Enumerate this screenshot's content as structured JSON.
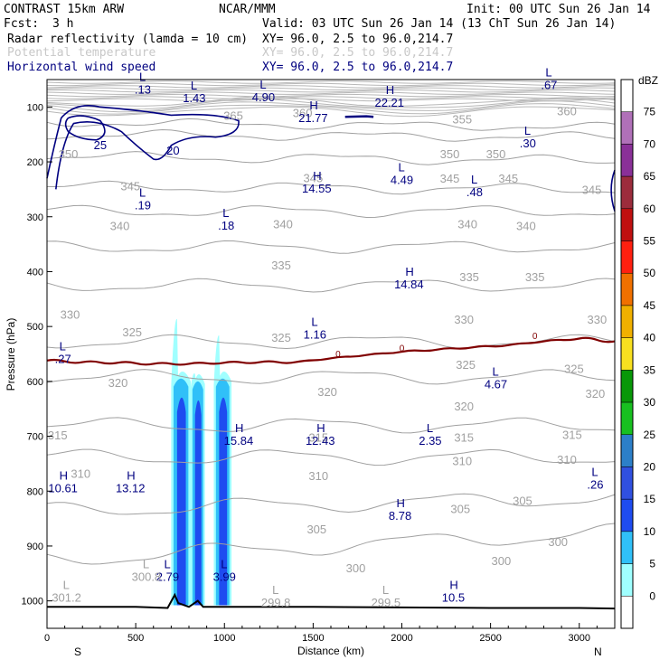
{
  "header": {
    "model": "CONTRAST 15km ARW",
    "org": "NCAR/MMM",
    "init": "Init: 00 UTC Sun 26 Jan 14",
    "fcst_label": "Fcst:",
    "fcst_value": "3 h",
    "valid": "Valid: 03 UTC Sun 26 Jan 14 (13 ChT Sun 26 Jan 14)",
    "fields": [
      {
        "name": "Radar reflectivity (lamda = 10 cm)",
        "xy": "XY=  96.0,  2.5 to  96.0,214.7",
        "color": "#000000"
      },
      {
        "name": "Potential temperature",
        "xy": "XY=  96.0,  2.5 to  96.0,214.7",
        "color": "#c8c8c8"
      },
      {
        "name": "Horizontal wind speed",
        "xy": "XY=  96.0,  2.5 to  96.0,214.7",
        "color": "#000080"
      }
    ]
  },
  "chart_data": {
    "type": "cross-section",
    "xlabel": "Distance (km)",
    "ylabel": "Pressure (hPa)",
    "xlim": [
      0,
      3200
    ],
    "ylim": [
      1050,
      50
    ],
    "x_ticks": [
      0,
      500,
      1000,
      1500,
      2000,
      2500,
      3000
    ],
    "y_ticks": [
      100,
      200,
      300,
      400,
      500,
      600,
      700,
      800,
      900,
      1000
    ],
    "x_end_labels": {
      "left": "S",
      "right": "N"
    },
    "colorbar": {
      "unit": "dBZ",
      "levels": [
        0,
        5,
        10,
        15,
        20,
        25,
        30,
        35,
        40,
        45,
        50,
        55,
        60,
        65,
        70,
        75
      ],
      "colors": [
        "#ffffff",
        "#a0ffff",
        "#30c0f8",
        "#1e4cf0",
        "#3050e0",
        "#2c7fc8",
        "#18c020",
        "#089808",
        "#f8e020",
        "#f0b000",
        "#f07000",
        "#ff2010",
        "#c01010",
        "#9c2c3c",
        "#8a3098",
        "#b070b8",
        "#ffffff"
      ]
    },
    "theta_contours": [
      {
        "value": 360,
        "p": [
          128,
          137
        ]
      },
      {
        "value": 355,
        "p": [
          150,
          155
        ]
      },
      {
        "value": 350,
        "p": [
          190,
          198
        ]
      },
      {
        "value": 345,
        "p": [
          245,
          250
        ]
      },
      {
        "value": 340,
        "p": [
          290,
          290
        ]
      },
      {
        "value": 335,
        "p": [
          355,
          355
        ]
      },
      {
        "value": 330,
        "p": [
          425,
          425
        ]
      },
      {
        "value": 325,
        "p": [
          528,
          528
        ]
      },
      {
        "value": 320,
        "p": [
          592,
          592
        ]
      },
      {
        "value": 315,
        "p": [
          680,
          680
        ]
      },
      {
        "value": 310,
        "p": [
          738,
          738
        ]
      },
      {
        "value": 305,
        "p": [
          835,
          812
        ]
      },
      {
        "value": 300,
        "p": [
          925,
          875
        ]
      }
    ],
    "theta_labels": [
      {
        "text": "360",
        "x": 1440,
        "p": 118
      },
      {
        "text": "365",
        "x": 1050,
        "p": 123
      },
      {
        "text": "360",
        "x": 2930,
        "p": 115
      },
      {
        "text": "355",
        "x": 2340,
        "p": 130
      },
      {
        "text": "350",
        "x": 2270,
        "p": 193
      },
      {
        "text": "350",
        "x": 2530,
        "p": 193
      },
      {
        "text": "350",
        "x": 120,
        "p": 193
      },
      {
        "text": "345",
        "x": 470,
        "p": 252
      },
      {
        "text": "345",
        "x": 1500,
        "p": 237
      },
      {
        "text": "345",
        "x": 2270,
        "p": 238
      },
      {
        "text": "345",
        "x": 2600,
        "p": 238
      },
      {
        "text": "345",
        "x": 3070,
        "p": 258
      },
      {
        "text": "340",
        "x": 410,
        "p": 324
      },
      {
        "text": "340",
        "x": 1330,
        "p": 321
      },
      {
        "text": "340",
        "x": 2370,
        "p": 321
      },
      {
        "text": "340",
        "x": 2700,
        "p": 324
      },
      {
        "text": "335",
        "x": 1320,
        "p": 396
      },
      {
        "text": "335",
        "x": 2380,
        "p": 417
      },
      {
        "text": "335",
        "x": 2750,
        "p": 417
      },
      {
        "text": "330",
        "x": 130,
        "p": 486
      },
      {
        "text": "330",
        "x": 2350,
        "p": 495
      },
      {
        "text": "330",
        "x": 3100,
        "p": 495
      },
      {
        "text": "325",
        "x": 480,
        "p": 518
      },
      {
        "text": "325",
        "x": 1320,
        "p": 528
      },
      {
        "text": "325",
        "x": 2360,
        "p": 577
      },
      {
        "text": "325",
        "x": 2970,
        "p": 585
      },
      {
        "text": "320",
        "x": 400,
        "p": 610
      },
      {
        "text": "320",
        "x": 1580,
        "p": 627
      },
      {
        "text": "320",
        "x": 2350,
        "p": 653
      },
      {
        "text": "320",
        "x": 3090,
        "p": 630
      },
      {
        "text": "315",
        "x": 60,
        "p": 706
      },
      {
        "text": "315",
        "x": 1530,
        "p": 710
      },
      {
        "text": "315",
        "x": 2350,
        "p": 710
      },
      {
        "text": "315",
        "x": 2960,
        "p": 705
      },
      {
        "text": "310",
        "x": 190,
        "p": 776
      },
      {
        "text": "310",
        "x": 1530,
        "p": 780
      },
      {
        "text": "310",
        "x": 2340,
        "p": 753
      },
      {
        "text": "310",
        "x": 2930,
        "p": 750
      },
      {
        "text": "305",
        "x": 1520,
        "p": 877
      },
      {
        "text": "305",
        "x": 2330,
        "p": 840
      },
      {
        "text": "305",
        "x": 2680,
        "p": 825
      },
      {
        "text": "300",
        "x": 1740,
        "p": 948
      },
      {
        "text": "300",
        "x": 2560,
        "p": 935
      },
      {
        "text": "300",
        "x": 2880,
        "p": 900
      }
    ],
    "wind_labels": [
      {
        "text": "25",
        "x": 300,
        "p": 177
      },
      {
        "text": "20",
        "x": 710,
        "p": 187
      },
      {
        "text": "0",
        "x": 1640,
        "p": 556
      },
      {
        "text": "0",
        "x": 2000,
        "p": 545
      },
      {
        "text": "0",
        "x": 2750,
        "p": 523
      }
    ],
    "extrema": [
      {
        "kind": "L",
        "value": ".13",
        "x": 540,
        "p": 72,
        "gray": false
      },
      {
        "kind": "L",
        "value": "1.43",
        "x": 830,
        "p": 88,
        "gray": false
      },
      {
        "kind": "L",
        "value": "4.90",
        "x": 1220,
        "p": 86,
        "gray": false
      },
      {
        "kind": "H",
        "value": "21.77",
        "x": 1500,
        "p": 124,
        "gray": false
      },
      {
        "kind": "H",
        "value": "22.21",
        "x": 1930,
        "p": 96,
        "gray": false
      },
      {
        "kind": "L",
        "value": ".67",
        "x": 2830,
        "p": 64,
        "gray": false
      },
      {
        "kind": "L",
        "value": ".30",
        "x": 2710,
        "p": 170,
        "gray": false
      },
      {
        "kind": "H",
        "value": "14.55",
        "x": 1520,
        "p": 253,
        "gray": false
      },
      {
        "kind": "L",
        "value": "4.49",
        "x": 2000,
        "p": 237,
        "gray": false
      },
      {
        "kind": "L",
        "value": ".48",
        "x": 2410,
        "p": 259,
        "gray": false
      },
      {
        "kind": "L",
        "value": ".19",
        "x": 540,
        "p": 283,
        "gray": false
      },
      {
        "kind": "L",
        "value": ".18",
        "x": 1010,
        "p": 320,
        "gray": false
      },
      {
        "kind": "H",
        "value": "14.84",
        "x": 2040,
        "p": 427,
        "gray": false
      },
      {
        "kind": "L",
        "value": "1.16",
        "x": 1510,
        "p": 519,
        "gray": false
      },
      {
        "kind": "L",
        "value": ".27",
        "x": 90,
        "p": 563,
        "gray": false
      },
      {
        "kind": "L",
        "value": "4.67",
        "x": 2530,
        "p": 609,
        "gray": false
      },
      {
        "kind": "H",
        "value": "15.84",
        "x": 1080,
        "p": 712,
        "gray": false
      },
      {
        "kind": "H",
        "value": "12.43",
        "x": 1540,
        "p": 712,
        "gray": false
      },
      {
        "kind": "L",
        "value": "2.35",
        "x": 2160,
        "p": 712,
        "gray": false
      },
      {
        "kind": "L",
        "value": ".26",
        "x": 3090,
        "p": 792,
        "gray": false
      },
      {
        "kind": "H",
        "value": "10.61",
        "x": 90,
        "p": 799,
        "gray": false
      },
      {
        "kind": "H",
        "value": "13.12",
        "x": 470,
        "p": 799,
        "gray": false
      },
      {
        "kind": "H",
        "value": "8.78",
        "x": 1990,
        "p": 849,
        "gray": false
      },
      {
        "kind": "L",
        "value": "2.79",
        "x": 680,
        "p": 960,
        "gray": false
      },
      {
        "kind": "L",
        "value": "3.99",
        "x": 1000,
        "p": 960,
        "gray": false
      },
      {
        "kind": "H",
        "value": "10.5",
        "x": 2290,
        "p": 998,
        "gray": false
      },
      {
        "kind": "L",
        "value": "301.2",
        "x": 110,
        "p": 998,
        "gray": true
      },
      {
        "kind": "L",
        "value": "300.8",
        "x": 560,
        "p": 960,
        "gray": true
      },
      {
        "kind": "L",
        "value": "299.8",
        "x": 1290,
        "p": 1007,
        "gray": true
      },
      {
        "kind": "L",
        "value": "299.5",
        "x": 1910,
        "p": 1007,
        "gray": true
      }
    ],
    "freezing_level": {
      "value": 0,
      "x": [
        0,
        200,
        400,
        600,
        800,
        1000,
        1200,
        1400,
        1600,
        1800,
        2000,
        2200,
        2400,
        2600,
        2800,
        3000,
        3200
      ],
      "p": [
        562,
        565,
        566,
        568,
        568,
        566,
        565,
        565,
        558,
        552,
        546,
        542,
        538,
        534,
        527,
        522,
        527
      ]
    },
    "terrain": {
      "x": [
        0,
        500,
        680,
        720,
        740,
        800,
        850,
        880,
        1500,
        2000,
        2500,
        3000,
        3200
      ],
      "p": [
        1011,
        1011,
        1013,
        989,
        1004,
        1011,
        1000,
        1011,
        1011,
        1012,
        1013,
        1013,
        1014
      ]
    },
    "reflectivity_columns": [
      {
        "x0": 700,
        "x1": 810,
        "top_p": 480,
        "core_top_p": 590,
        "dbz_max": 20
      },
      {
        "x0": 810,
        "x1": 890,
        "top_p": 580,
        "core_top_p": 595,
        "dbz_max": 20
      },
      {
        "x0": 940,
        "x1": 1040,
        "top_p": 510,
        "core_top_p": 590,
        "dbz_max": 20
      }
    ]
  }
}
